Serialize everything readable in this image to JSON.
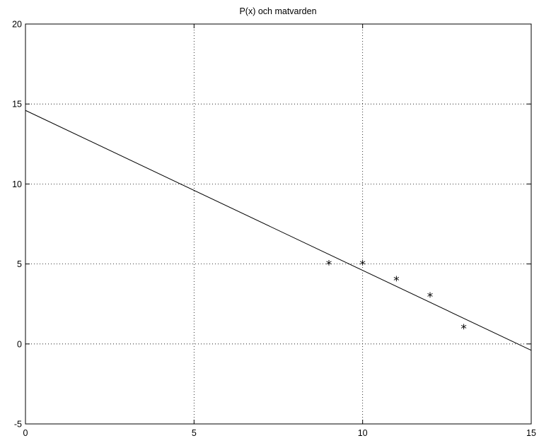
{
  "chart_data": {
    "type": "line",
    "title": "P(x) och matvarden",
    "xlabel": "",
    "ylabel": "",
    "xlim": [
      0,
      15
    ],
    "ylim": [
      -5,
      20
    ],
    "xticks": [
      0,
      5,
      10,
      15
    ],
    "yticks": [
      -5,
      0,
      5,
      10,
      15,
      20
    ],
    "grid": true,
    "series": [
      {
        "kind": "line",
        "x": [
          0,
          15
        ],
        "y": [
          14.6,
          -0.4
        ],
        "color": "#000000"
      },
      {
        "kind": "scatter",
        "marker": "*",
        "x": [
          9,
          10,
          11,
          12,
          13
        ],
        "y": [
          5,
          5,
          4,
          3,
          1
        ],
        "color": "#000000"
      }
    ]
  }
}
